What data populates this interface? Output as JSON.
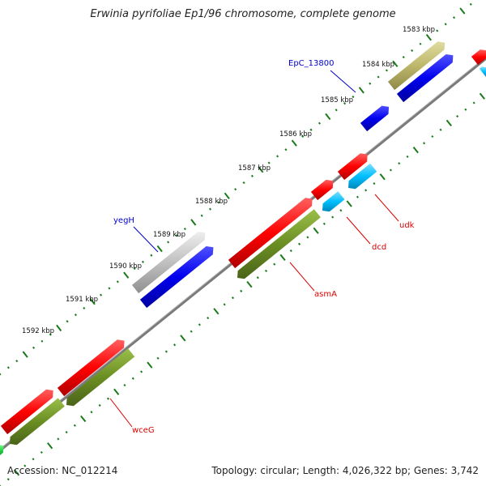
{
  "title": "Erwinia pyrifoliae Ep1/96 chromosome, complete genome",
  "accession": "Accession: NC_012214",
  "topology": "Topology: circular; Length: 4,026,322 bp; Genes: 3,742",
  "ticks": [
    {
      "label": "1583 kbp"
    },
    {
      "label": "1584 kbp"
    },
    {
      "label": "1585 kbp"
    },
    {
      "label": "1586 kbp"
    },
    {
      "label": "1587 kbp"
    },
    {
      "label": "1588 kbp"
    },
    {
      "label": "1589 kbp"
    },
    {
      "label": "1590 kbp"
    },
    {
      "label": "1591 kbp"
    },
    {
      "label": "1592 kbp"
    }
  ],
  "gene_labels": [
    {
      "name": "EpC_13800",
      "color": "#0000cc"
    },
    {
      "name": "yegH",
      "color": "#0000cc"
    },
    {
      "name": "udk",
      "color": "#dd0000"
    },
    {
      "name": "dcd",
      "color": "#dd0000"
    },
    {
      "name": "asmA",
      "color": "#dd0000"
    },
    {
      "name": "wceG",
      "color": "#dd0000"
    }
  ],
  "colors": {
    "backbone": "#888888",
    "tick_green": "#1a7a1a",
    "red": "#ff0000",
    "blue": "#0000ee",
    "olive": "#6b8e23",
    "khaki": "#bdb76b",
    "cyan": "#00bfff",
    "grey": "#c0c0c0",
    "green": "#22cc44"
  }
}
